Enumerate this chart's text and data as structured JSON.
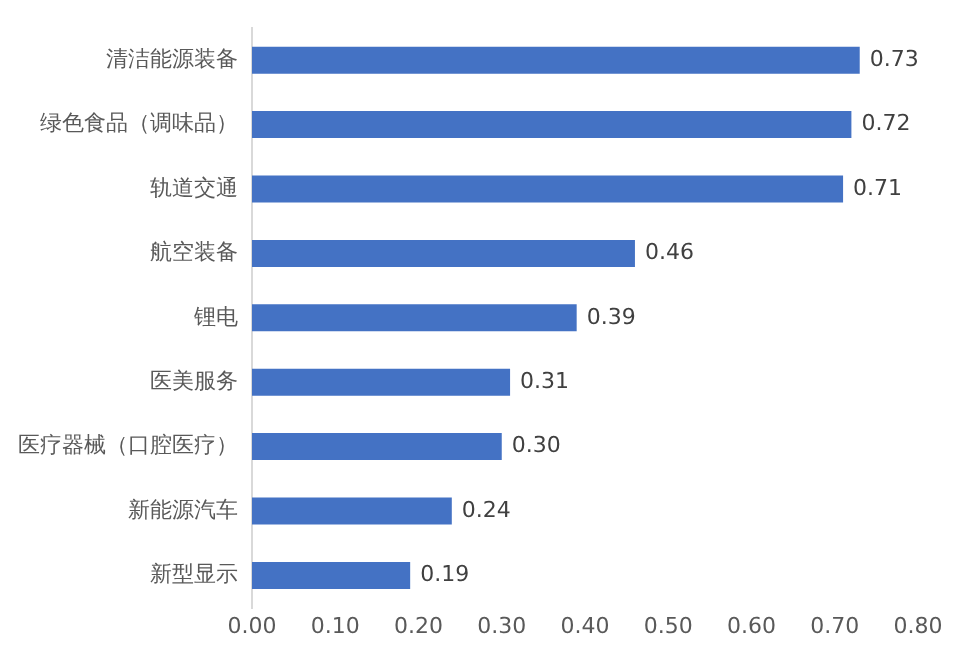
{
  "chart_data": {
    "type": "bar",
    "orientation": "horizontal",
    "categories": [
      "清洁能源装备",
      "绿色食品（调味品）",
      "轨道交通",
      "航空装备",
      "锂电",
      "医美服务",
      "医疗器械（口腔医疗）",
      "新能源汽车",
      "新型显示"
    ],
    "values": [
      0.73,
      0.72,
      0.71,
      0.46,
      0.39,
      0.31,
      0.3,
      0.24,
      0.19
    ],
    "value_labels": [
      "0.73",
      "0.72",
      "0.71",
      "0.46",
      "0.39",
      "0.31",
      "0.30",
      "0.24",
      "0.19"
    ],
    "color": "#4472c4",
    "xlim": [
      0,
      0.8
    ],
    "xticks": [
      {
        "value": 0,
        "label": "0.00"
      },
      {
        "value": 0.1,
        "label": "0.10"
      },
      {
        "value": 0.2,
        "label": "0.20"
      },
      {
        "value": 0.3,
        "label": "0.30"
      },
      {
        "value": 0.4,
        "label": "0.40"
      },
      {
        "value": 0.5,
        "label": "0.50"
      },
      {
        "value": 0.6,
        "label": "0.60"
      },
      {
        "value": 0.7,
        "label": "0.70"
      },
      {
        "value": 0.8,
        "label": "0.80"
      }
    ],
    "grid": false,
    "legend": false
  }
}
